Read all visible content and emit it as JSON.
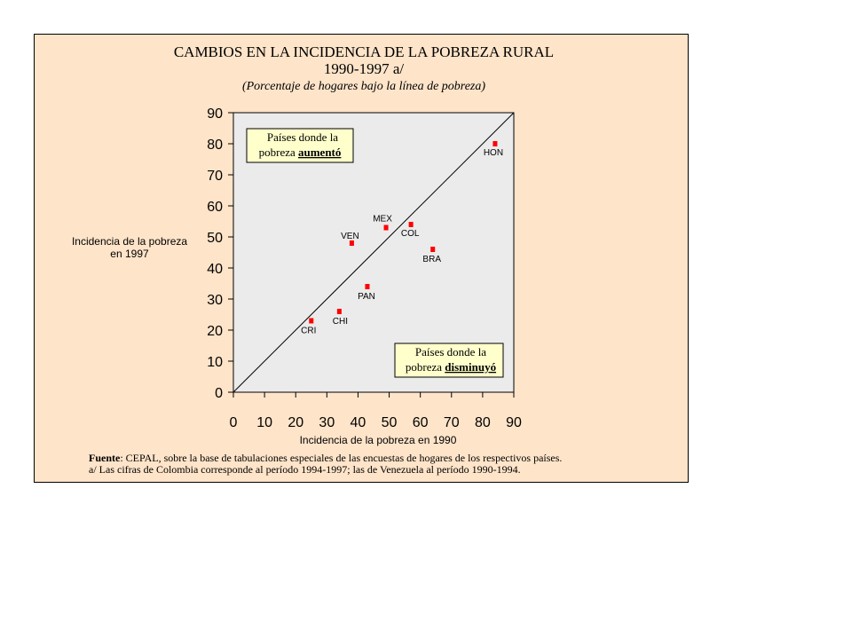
{
  "chart_data": {
    "type": "scatter",
    "title": "CAMBIOS EN LA INCIDENCIA DE LA POBREZA RURAL",
    "subtitle": "1990-1997 a/",
    "caption": "(Porcentaje de hogares bajo la línea de pobreza)",
    "xlabel": "Incidencia de la pobreza en 1990",
    "ylabel": [
      "Incidencia de la pobreza",
      "en 1997"
    ],
    "labels": [
      "CRI",
      "CHI",
      "VEN",
      "PAN",
      "MEX",
      "COL",
      "BRA",
      "HON"
    ],
    "x": [
      25,
      34,
      38,
      43,
      49,
      57,
      64,
      84
    ],
    "values": [
      23,
      26,
      48,
      34,
      53,
      54,
      46,
      80
    ],
    "color": "#ff0000",
    "xlim": [
      0,
      90
    ],
    "xticks": [
      0,
      10,
      20,
      30,
      40,
      50,
      60,
      70,
      80,
      90
    ],
    "ylim": [
      0,
      90
    ],
    "yticks": [
      0,
      10,
      20,
      30,
      40,
      50,
      60,
      70,
      80,
      90
    ],
    "annotations": [
      {
        "line1": "Países donde la",
        "line2": "pobreza",
        "emphasis": "aumentó"
      },
      {
        "line1": "Países donde la",
        "line2": "pobreza",
        "emphasis": "disminuyó"
      }
    ],
    "source_label": "Fuente",
    "source": ": CEPAL, sobre la base de tabulaciones especiales de las encuestas de hogares de los respectivos países.",
    "note": "a/ Las cifras de Colombia corresponde al período 1994-1997; las de Venezuela al período 1990-1994."
  }
}
